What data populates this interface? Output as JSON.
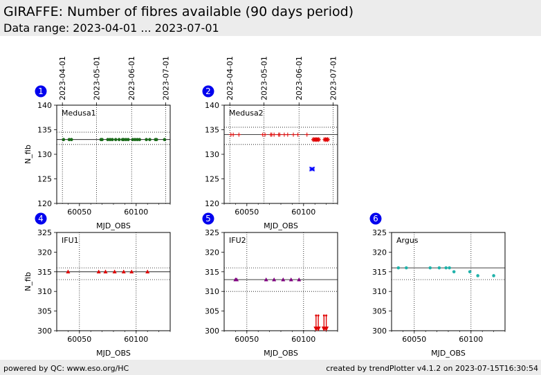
{
  "header": {
    "title": "GIRAFFE: Number of fibres available (90 days period)",
    "subtitle": "Data range: 2023-04-01 ... 2023-07-01"
  },
  "footer": {
    "left": "powered by QC: www.eso.org/HC",
    "right": "created by trendPlotter v4.1.2 on 2023-07-15T16:30:54"
  },
  "colors": {
    "badge": "#0000ee",
    "green": "#1a6b1a",
    "red": "#e00000",
    "purple": "#800080",
    "blue": "#0000ff",
    "teal": "#20b2aa"
  },
  "chart_data": [
    {
      "type": "scatter",
      "panel_number": "1",
      "label": "Medusa1",
      "xlabel": "MJD_OBS",
      "ylabel": "N_fib",
      "xlim": [
        60030,
        60130
      ],
      "ylim": [
        120,
        140
      ],
      "xticks": [
        60050,
        60100
      ],
      "yticks": [
        120,
        125,
        130,
        135,
        140
      ],
      "date_ticks": [
        {
          "mjd": 60035,
          "label": "2023-04-01"
        },
        {
          "mjd": 60065,
          "label": "2023-05-01"
        },
        {
          "mjd": 60096,
          "label": "2023-06-01"
        },
        {
          "mjd": 60126,
          "label": "2023-07-01"
        }
      ],
      "hlines": [
        {
          "y": 133,
          "style": "solid"
        },
        {
          "y": 134.5,
          "style": "dotted"
        },
        {
          "y": 132,
          "style": "dotted"
        }
      ],
      "grid": true,
      "series": [
        {
          "marker": "dot",
          "color": "#1a6b1a",
          "x": [
            60036,
            60041,
            60043,
            60069,
            60070,
            60075,
            60077,
            60079,
            60082,
            60085,
            60088,
            60089,
            60091,
            60093,
            60097,
            60099,
            60101,
            60103,
            60109,
            60112,
            60117,
            60118,
            60125
          ],
          "y": [
            133,
            133,
            133,
            133,
            133,
            133,
            133,
            133,
            133,
            133,
            133,
            133,
            133,
            133,
            133,
            133,
            133,
            133,
            133,
            133,
            133,
            133,
            133
          ]
        }
      ]
    },
    {
      "type": "scatter",
      "panel_number": "2",
      "label": "Medusa2",
      "xlabel": "MJD_OBS",
      "ylabel": "",
      "xlim": [
        60030,
        60130
      ],
      "ylim": [
        120,
        140
      ],
      "xticks": [
        60050,
        60100
      ],
      "yticks": [
        120,
        125,
        130,
        135,
        140
      ],
      "date_ticks": [
        {
          "mjd": 60035,
          "label": "2023-04-01"
        },
        {
          "mjd": 60065,
          "label": "2023-05-01"
        },
        {
          "mjd": 60096,
          "label": "2023-06-01"
        },
        {
          "mjd": 60126,
          "label": "2023-07-01"
        }
      ],
      "hlines": [
        {
          "y": 134,
          "style": "solid"
        },
        {
          "y": 135.5,
          "style": "dotted"
        },
        {
          "y": 132,
          "style": "dotted"
        }
      ],
      "grid": true,
      "series": [
        {
          "marker": "plus",
          "color": "#e00000",
          "x": [
            60036,
            60038,
            60043,
            60064,
            60066,
            60071,
            60072,
            60074,
            60078,
            60079,
            60083,
            60086,
            60091,
            60095,
            60103
          ],
          "y": [
            134,
            134,
            134,
            134,
            134,
            134,
            134,
            134,
            134,
            134,
            134,
            134,
            134,
            134,
            134
          ]
        },
        {
          "marker": "star",
          "color": "#e00000",
          "x": [
            60109,
            60111,
            60113,
            60119,
            60121
          ],
          "y": [
            133,
            133,
            133,
            133,
            133
          ]
        },
        {
          "marker": "x",
          "color": "#0000ff",
          "x": [
            60107,
            60108
          ],
          "y": [
            127,
            127
          ]
        }
      ]
    },
    {
      "type": "scatter",
      "panel_number": "4",
      "label": "IFU1",
      "xlabel": "MJD_OBS",
      "ylabel": "N_fib",
      "xlim": [
        60030,
        60130
      ],
      "ylim": [
        300,
        325
      ],
      "xticks": [
        60050,
        60100
      ],
      "yticks": [
        300,
        305,
        310,
        315,
        320,
        325
      ],
      "hlines": [
        {
          "y": 315,
          "style": "solid"
        },
        {
          "y": 316,
          "style": "dotted"
        },
        {
          "y": 313,
          "style": "dotted"
        }
      ],
      "grid": true,
      "series": [
        {
          "marker": "triangle",
          "color": "#e00000",
          "x": [
            60040,
            60067,
            60073,
            60081,
            60089,
            60096,
            60110
          ],
          "y": [
            315,
            315,
            315,
            315,
            315,
            315,
            315
          ]
        }
      ]
    },
    {
      "type": "scatter",
      "panel_number": "5",
      "label": "IFU2",
      "xlabel": "MJD_OBS",
      "ylabel": "",
      "xlim": [
        60030,
        60130
      ],
      "ylim": [
        300,
        325
      ],
      "xticks": [
        60050,
        60100
      ],
      "yticks": [
        300,
        305,
        310,
        315,
        320,
        325
      ],
      "hlines": [
        {
          "y": 313,
          "style": "solid"
        },
        {
          "y": 316,
          "style": "dotted"
        },
        {
          "y": 310,
          "style": "dotted"
        }
      ],
      "grid": true,
      "series": [
        {
          "marker": "triangle",
          "color": "#800080",
          "x": [
            60040,
            60041,
            60067,
            60074,
            60082,
            60089,
            60096
          ],
          "y": [
            313,
            313,
            313,
            313,
            313,
            313,
            313
          ]
        },
        {
          "marker": "arrow-down",
          "color": "#e00000",
          "x": [
            60111,
            60113,
            60118,
            60120
          ],
          "y": [
            300,
            300,
            300,
            300
          ]
        }
      ]
    },
    {
      "type": "scatter",
      "panel_number": "6",
      "label": "Argus",
      "xlabel": "MJD_OBS",
      "ylabel": "",
      "xlim": [
        60030,
        60130
      ],
      "ylim": [
        300,
        325
      ],
      "xticks": [
        60050,
        60100
      ],
      "yticks": [
        300,
        305,
        310,
        315,
        320,
        325
      ],
      "hlines": [
        {
          "y": 316,
          "style": "solid"
        },
        {
          "y": 313,
          "style": "dotted"
        }
      ],
      "grid": true,
      "series": [
        {
          "marker": "dot",
          "color": "#20b2aa",
          "x": [
            60036,
            60043,
            60064,
            60072,
            60078,
            60081,
            60085,
            60099,
            60106,
            60120
          ],
          "y": [
            316,
            316,
            316,
            316,
            316,
            316,
            315,
            315,
            314,
            314
          ]
        }
      ]
    }
  ]
}
